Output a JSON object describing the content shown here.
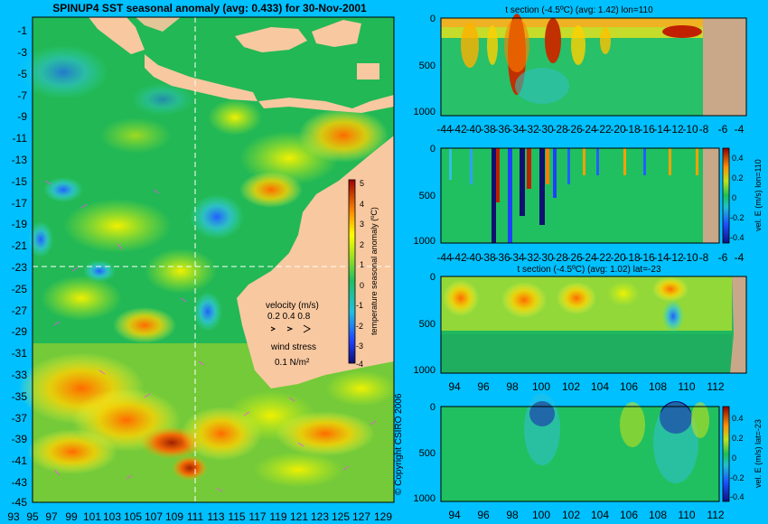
{
  "main": {
    "title": "SPINUP4 SST seasonal anomaly (avg: 0.433) for 30-Nov-2001",
    "x_ticks": [
      "93",
      "95",
      "97",
      "99",
      "101",
      "103",
      "105",
      "107",
      "109",
      "111",
      "113",
      "115",
      "117",
      "119",
      "121",
      "123",
      "125",
      "127",
      "129"
    ],
    "y_ticks": [
      "-1",
      "-3",
      "-5",
      "-7",
      "-9",
      "-11",
      "-13",
      "-15",
      "-17",
      "-19",
      "-21",
      "-23",
      "-25",
      "-27",
      "-29",
      "-31",
      "-33",
      "-35",
      "-37",
      "-39",
      "-41",
      "-43",
      "-45"
    ],
    "colorbar_ticks": [
      "5",
      "4",
      "3",
      "2",
      "1",
      "0",
      "-1",
      "-2",
      "-3",
      "-4"
    ],
    "colorbar_label": "temperature seasonal anomaly (ºC)",
    "velocity_label": "velocity (m/s)",
    "velocity_scale": "0.2 0.4 0.8",
    "wind_label": "wind stress",
    "wind_scale": "0.1 N/m²",
    "copyright": "© Copyright CSIRO 2006",
    "colors": {
      "ocean_mid": "#22b855",
      "land": "#f8c8a0",
      "background": "#00c0ff",
      "crosshair": "#ffffff",
      "vector": "#ff40ff"
    }
  },
  "chart_data": [
    {
      "type": "heatmap",
      "title": "SPINUP4 SST seasonal anomaly (avg: 0.433) for 30-Nov-2001",
      "x_ticks": [
        93,
        95,
        97,
        99,
        101,
        103,
        105,
        107,
        109,
        111,
        113,
        115,
        117,
        119,
        121,
        123,
        125,
        127,
        129
      ],
      "y_ticks": [
        -1,
        -3,
        -5,
        -7,
        -9,
        -11,
        -13,
        -15,
        -17,
        -19,
        -21,
        -23,
        -25,
        -27,
        -29,
        -31,
        -33,
        -35,
        -37,
        -39,
        -41,
        -43,
        -45
      ],
      "xlim": [
        93,
        130
      ],
      "ylim": [
        -45,
        0
      ],
      "colorbar_range": [
        -4,
        5
      ],
      "crosshair": {
        "lon": 110,
        "lat": -23
      }
    },
    {
      "type": "heatmap",
      "title": "t section (-4.5ºC) (avg: 1.42) lon=110",
      "x_ticks": [
        "-44",
        "-42",
        "-40",
        "-38",
        "-36",
        "-34",
        "-32",
        "-30",
        "-28",
        "-26",
        "-24",
        "-22",
        "-20",
        "-18",
        "-16",
        "-14",
        "-12",
        "-10",
        "-8",
        "-6",
        "-4"
      ],
      "y_ticks": [
        "0",
        "500",
        "1000"
      ]
    },
    {
      "type": "heatmap",
      "title": "",
      "x_ticks": [
        "-44",
        "-42",
        "-40",
        "-38",
        "-36",
        "-34",
        "-32",
        "-30",
        "-28",
        "-26",
        "-24",
        "-22",
        "-20",
        "-18",
        "-16",
        "-14",
        "-12",
        "-10",
        "-8",
        "-6",
        "-4"
      ],
      "y_ticks": [
        "0",
        "500",
        "1000"
      ],
      "colorbar_ticks": [
        "0.4",
        "0.2",
        "0",
        "-0.2",
        "-0.4"
      ],
      "colorbar_label": "vel. E (m/s) lon=110"
    },
    {
      "type": "heatmap",
      "title": "t section (-4.5ºC) (avg: 1.02) lat=-23",
      "x_ticks": [
        "94",
        "96",
        "98",
        "100",
        "102",
        "104",
        "106",
        "108",
        "110",
        "112"
      ],
      "y_ticks": [
        "0",
        "500",
        "1000"
      ]
    },
    {
      "type": "heatmap",
      "title": "",
      "x_ticks": [
        "94",
        "96",
        "98",
        "100",
        "102",
        "104",
        "106",
        "108",
        "110",
        "112"
      ],
      "y_ticks": [
        "0",
        "500",
        "1000"
      ],
      "colorbar_ticks": [
        "0.4",
        "0.2",
        "0",
        "-0.2",
        "-0.4"
      ],
      "colorbar_label": "vel. E (m/s) lat=-23"
    }
  ]
}
